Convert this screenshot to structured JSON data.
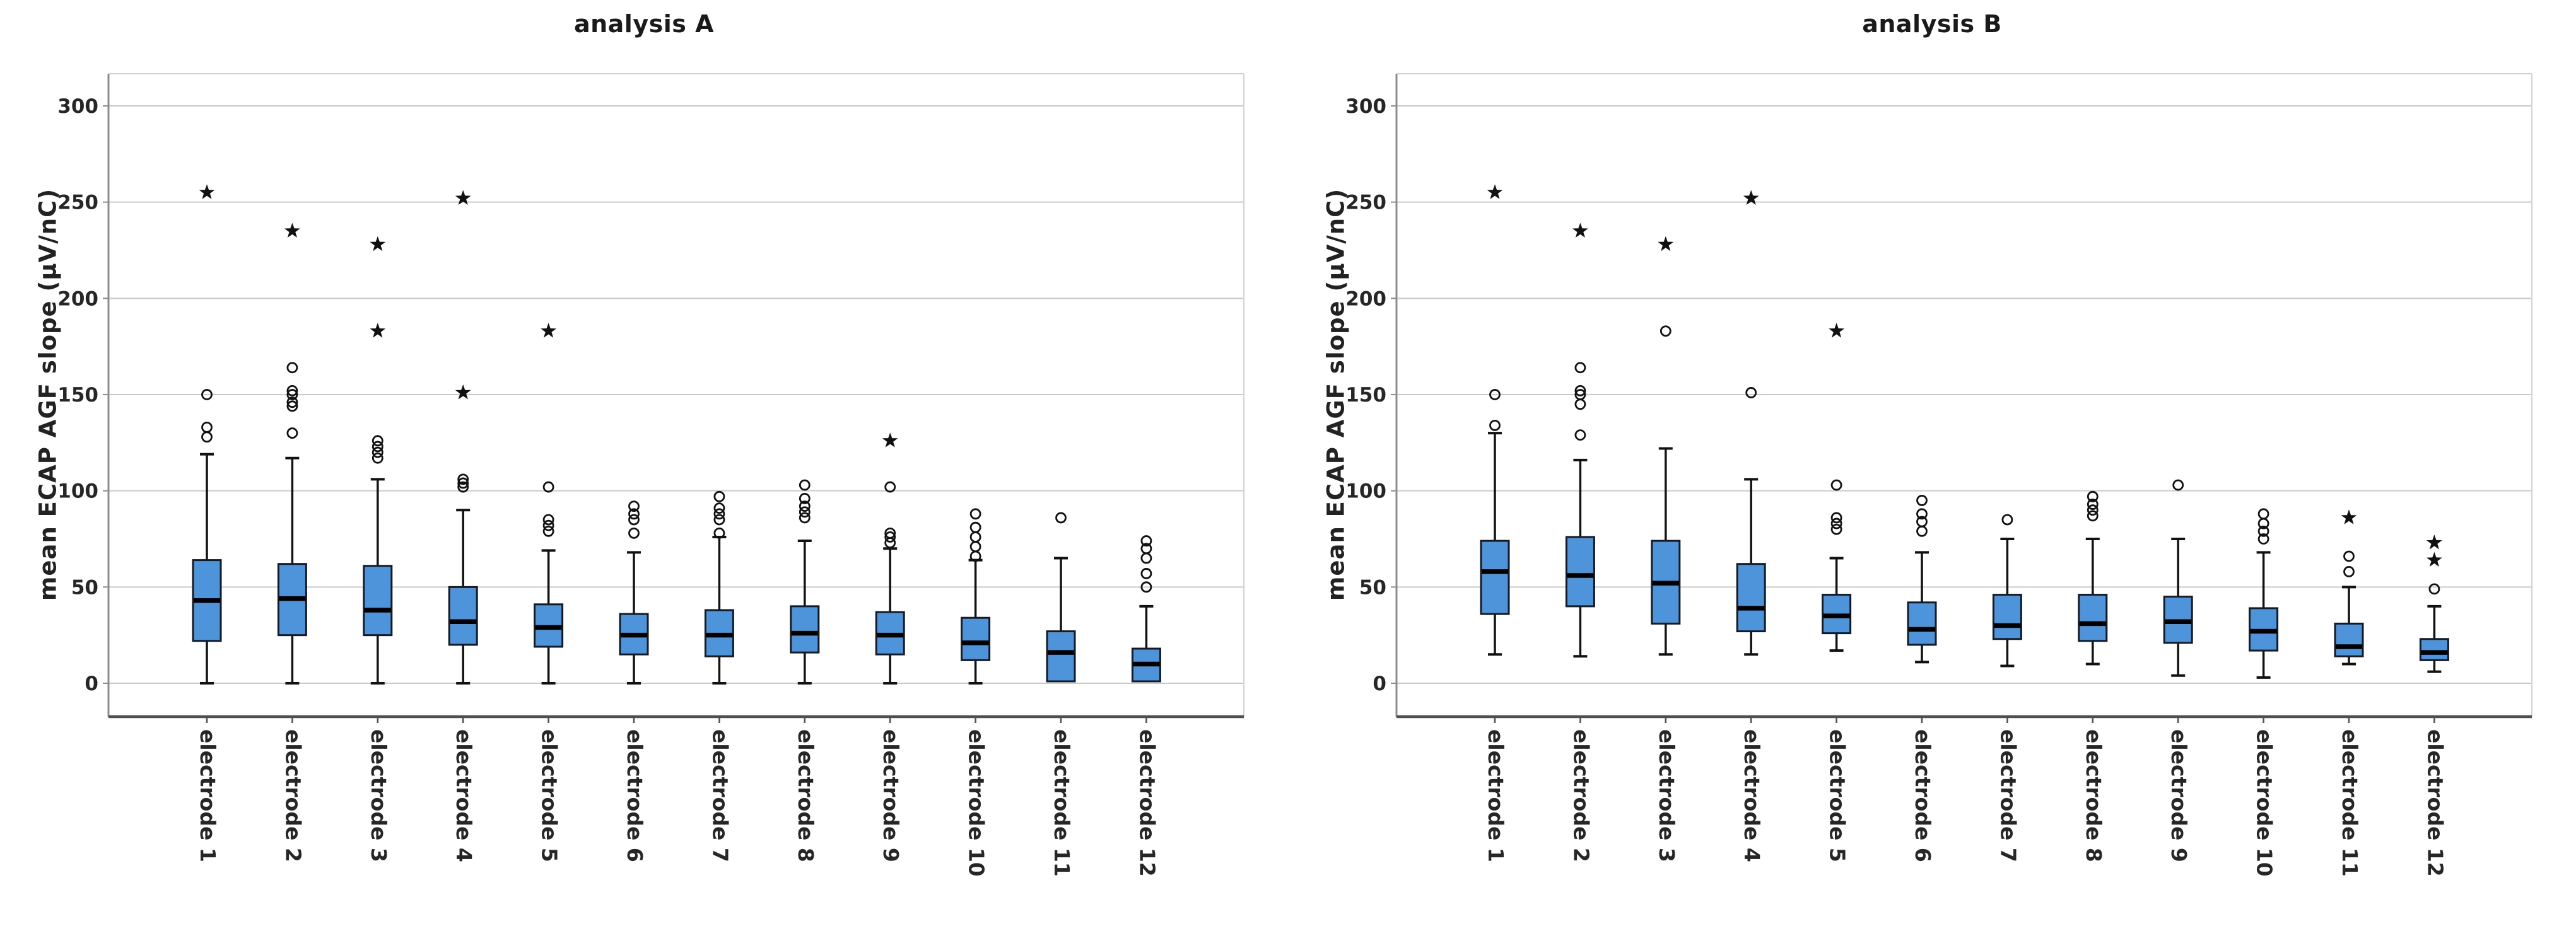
{
  "figure": {
    "background": "#ffffff",
    "colors": {
      "box_fill": "#4D94DB",
      "box_border": "#151a23",
      "median_line": "#000000",
      "whisker": "#111111",
      "outlier": "#111111",
      "gridline": "#c9c9c9",
      "frame": "#d2d2d2",
      "y_axis_line": "#8c8c8c",
      "x_axis_line": "#4f4f4f",
      "text": "#262626"
    }
  },
  "chart_data": [
    {
      "type": "boxplot",
      "title": "analysis A",
      "ylabel": "mean ECAP AGF slope (μV/nC)",
      "xlabel": "",
      "y_ticks": [
        0,
        50,
        100,
        150,
        200,
        250,
        300
      ],
      "ylim": [
        -17,
        317
      ],
      "grid": "horizontal",
      "legend": "none",
      "categories": [
        "electrode 1",
        "electrode 2",
        "electrode 3",
        "electrode 4",
        "electrode 5",
        "electrode 6",
        "electrode 7",
        "electrode 8",
        "electrode 9",
        "electrode 10",
        "electrode 11",
        "electrode 12"
      ],
      "boxes": [
        {
          "category": "electrode 1",
          "min": 0,
          "q1": 22,
          "median": 43,
          "q3": 64,
          "max": 119,
          "outliers": [
            128,
            133,
            150
          ],
          "extremes": [
            255
          ]
        },
        {
          "category": "electrode 2",
          "min": 0,
          "q1": 25,
          "median": 44,
          "q3": 62,
          "max": 117,
          "outliers": [
            130,
            144,
            146,
            150,
            152,
            164
          ],
          "extremes": [
            235
          ]
        },
        {
          "category": "electrode 3",
          "min": 0,
          "q1": 25,
          "median": 38,
          "q3": 61,
          "max": 106,
          "outliers": [
            117,
            120,
            123,
            126
          ],
          "extremes": [
            183,
            228
          ]
        },
        {
          "category": "electrode 4",
          "min": 0,
          "q1": 20,
          "median": 32,
          "q3": 50,
          "max": 90,
          "outliers": [
            102,
            104,
            106
          ],
          "extremes": [
            151,
            252
          ]
        },
        {
          "category": "electrode 5",
          "min": 0,
          "q1": 19,
          "median": 29,
          "q3": 41,
          "max": 69,
          "outliers": [
            79,
            82,
            85,
            102
          ],
          "extremes": [
            183
          ]
        },
        {
          "category": "electrode 6",
          "min": 0,
          "q1": 15,
          "median": 25,
          "q3": 36,
          "max": 68,
          "outliers": [
            78,
            85,
            88,
            92
          ],
          "extremes": []
        },
        {
          "category": "electrode 7",
          "min": 0,
          "q1": 14,
          "median": 25,
          "q3": 38,
          "max": 76,
          "outliers": [
            78,
            85,
            88,
            91,
            97
          ],
          "extremes": []
        },
        {
          "category": "electrode 8",
          "min": 0,
          "q1": 16,
          "median": 26,
          "q3": 40,
          "max": 74,
          "outliers": [
            86,
            89,
            92,
            96,
            103
          ],
          "extremes": []
        },
        {
          "category": "electrode 9",
          "min": 0,
          "q1": 15,
          "median": 25,
          "q3": 37,
          "max": 70,
          "outliers": [
            73,
            76,
            78,
            102
          ],
          "extremes": [
            126
          ]
        },
        {
          "category": "electrode 10",
          "min": 0,
          "q1": 12,
          "median": 21,
          "q3": 34,
          "max": 64,
          "outliers": [
            66,
            71,
            76,
            81,
            88
          ],
          "extremes": []
        },
        {
          "category": "electrode 11",
          "min": 1,
          "q1": 1,
          "median": 16,
          "q3": 27,
          "max": 65,
          "outliers": [
            86
          ],
          "extremes": []
        },
        {
          "category": "electrode 12",
          "min": 1,
          "q1": 1,
          "median": 10,
          "q3": 18,
          "max": 40,
          "outliers": [
            50,
            57,
            65,
            70,
            74
          ],
          "extremes": []
        }
      ]
    },
    {
      "type": "boxplot",
      "title": "analysis B",
      "ylabel": "mean ECAP AGF slope (μV/nC)",
      "xlabel": "",
      "y_ticks": [
        0,
        50,
        100,
        150,
        200,
        250,
        300
      ],
      "ylim": [
        -17,
        317
      ],
      "grid": "horizontal",
      "legend": "none",
      "categories": [
        "electrode 1",
        "electrode 2",
        "electrode 3",
        "electrode 4",
        "electrode 5",
        "electrode 6",
        "electrode 7",
        "electrode 8",
        "electrode 9",
        "electrode 10",
        "electrode 11",
        "electrode 12"
      ],
      "boxes": [
        {
          "category": "electrode 1",
          "min": 15,
          "q1": 36,
          "median": 58,
          "q3": 74,
          "max": 130,
          "outliers": [
            134,
            150
          ],
          "extremes": [
            255
          ]
        },
        {
          "category": "electrode 2",
          "min": 14,
          "q1": 40,
          "median": 56,
          "q3": 76,
          "max": 116,
          "outliers": [
            129,
            145,
            150,
            152,
            164
          ],
          "extremes": [
            235
          ]
        },
        {
          "category": "electrode 3",
          "min": 15,
          "q1": 31,
          "median": 52,
          "q3": 74,
          "max": 122,
          "outliers": [
            183
          ],
          "extremes": [
            228
          ]
        },
        {
          "category": "electrode 4",
          "min": 15,
          "q1": 27,
          "median": 39,
          "q3": 62,
          "max": 106,
          "outliers": [
            151
          ],
          "extremes": [
            252
          ]
        },
        {
          "category": "electrode 5",
          "min": 17,
          "q1": 26,
          "median": 35,
          "q3": 46,
          "max": 65,
          "outliers": [
            80,
            83,
            86,
            103
          ],
          "extremes": [
            183
          ]
        },
        {
          "category": "electrode 6",
          "min": 11,
          "q1": 20,
          "median": 28,
          "q3": 42,
          "max": 68,
          "outliers": [
            79,
            84,
            88,
            95
          ],
          "extremes": []
        },
        {
          "category": "electrode 7",
          "min": 9,
          "q1": 23,
          "median": 30,
          "q3": 46,
          "max": 75,
          "outliers": [
            85
          ],
          "extremes": []
        },
        {
          "category": "electrode 8",
          "min": 10,
          "q1": 22,
          "median": 31,
          "q3": 46,
          "max": 75,
          "outliers": [
            87,
            90,
            93,
            97
          ],
          "extremes": []
        },
        {
          "category": "electrode 9",
          "min": 4,
          "q1": 21,
          "median": 32,
          "q3": 45,
          "max": 75,
          "outliers": [
            103
          ],
          "extremes": []
        },
        {
          "category": "electrode 10",
          "min": 3,
          "q1": 17,
          "median": 27,
          "q3": 39,
          "max": 68,
          "outliers": [
            75,
            79,
            83,
            88
          ],
          "extremes": []
        },
        {
          "category": "electrode 11",
          "min": 10,
          "q1": 14,
          "median": 19,
          "q3": 31,
          "max": 50,
          "outliers": [
            58,
            66
          ],
          "extremes": [
            86
          ]
        },
        {
          "category": "electrode 12",
          "min": 6,
          "q1": 12,
          "median": 16,
          "q3": 23,
          "max": 40,
          "outliers": [
            49
          ],
          "extremes": [
            64,
            73
          ]
        }
      ]
    }
  ]
}
